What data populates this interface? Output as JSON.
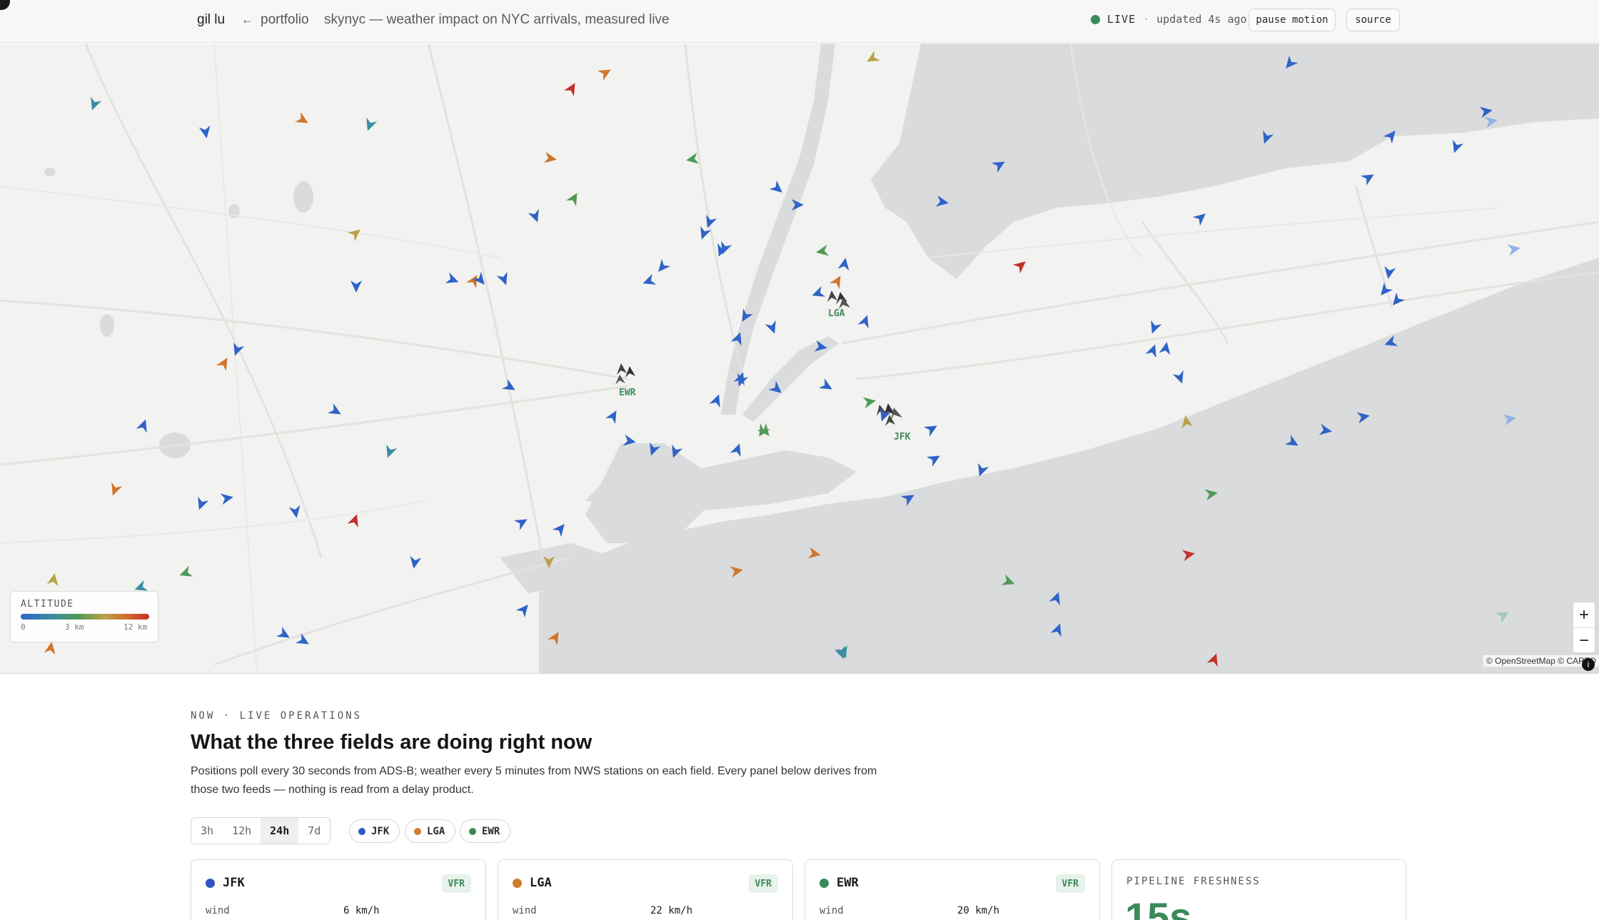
{
  "topbar": {
    "brand": "gil lu",
    "back_label": "portfolio",
    "subtitle": "skynyc — weather impact on NYC arrivals, measured live",
    "live_label": "LIVE",
    "separator": "·",
    "updated_text": "updated 4s ago",
    "pause_label": "pause motion",
    "source_label": "source"
  },
  "map": {
    "airports": [
      {
        "code": "EWR"
      },
      {
        "code": "LGA"
      },
      {
        "code": "JFK"
      }
    ],
    "legend": {
      "title": "ALTITUDE",
      "ticks": [
        "0",
        "3 km",
        "12 km"
      ]
    },
    "zoom_in": "+",
    "zoom_out": "−",
    "attribution": "© OpenStreetMap © CARTO",
    "info": "i",
    "colors": {
      "low": "#2f63c8",
      "mid_low": "#3a8ea0",
      "mid": "#4f9a55",
      "mid_high": "#b9a24a",
      "high": "#d0762f",
      "very_high": "#c4302a",
      "airport_label": "#3d8a5c"
    }
  },
  "section": {
    "eyebrow": "NOW · LIVE OPERATIONS",
    "title": "What the three fields are doing right now",
    "description": "Positions poll every 30 seconds from ADS-B; weather every 5 minutes from NWS stations on each field. Every panel below derives from those two feeds — nothing is read from a delay product."
  },
  "filters": {
    "ranges": [
      "3h",
      "12h",
      "24h",
      "7d"
    ],
    "selected_range": "24h",
    "airports": [
      {
        "label": "JFK",
        "color": "#2f57c4"
      },
      {
        "label": "LGA",
        "color": "#cf7e2e"
      },
      {
        "label": "EWR",
        "color": "#3b8a5a"
      }
    ]
  },
  "cards": [
    {
      "name": "JFK",
      "color": "#2f57c4",
      "badge": "VFR",
      "metric_label": "wind",
      "metric_value": "6 km/h"
    },
    {
      "name": "LGA",
      "color": "#cf7e2e",
      "badge": "VFR",
      "metric_label": "wind",
      "metric_value": "22 km/h"
    },
    {
      "name": "EWR",
      "color": "#3b8a5a",
      "badge": "VFR",
      "metric_label": "wind",
      "metric_value": "20 km/h"
    }
  ],
  "freshness": {
    "title": "PIPELINE FRESHNESS",
    "value": "15s"
  }
}
